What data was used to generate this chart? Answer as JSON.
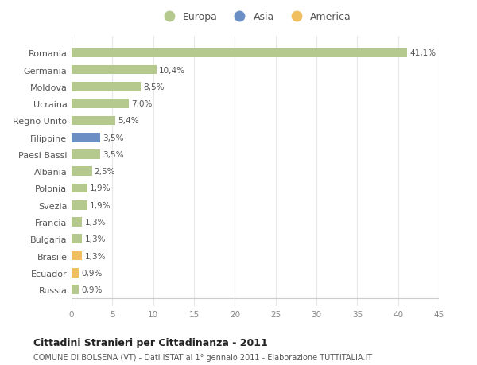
{
  "categories": [
    "Romania",
    "Germania",
    "Moldova",
    "Ucraina",
    "Regno Unito",
    "Filippine",
    "Paesi Bassi",
    "Albania",
    "Polonia",
    "Svezia",
    "Francia",
    "Bulgaria",
    "Brasile",
    "Ecuador",
    "Russia"
  ],
  "values": [
    41.1,
    10.4,
    8.5,
    7.0,
    5.4,
    3.5,
    3.5,
    2.5,
    1.9,
    1.9,
    1.3,
    1.3,
    1.3,
    0.9,
    0.9
  ],
  "labels": [
    "41,1%",
    "10,4%",
    "8,5%",
    "7,0%",
    "5,4%",
    "3,5%",
    "3,5%",
    "2,5%",
    "1,9%",
    "1,9%",
    "1,3%",
    "1,3%",
    "1,3%",
    "0,9%",
    "0,9%"
  ],
  "colors": [
    "#b5c98e",
    "#b5c98e",
    "#b5c98e",
    "#b5c98e",
    "#b5c98e",
    "#6b8fc4",
    "#b5c98e",
    "#b5c98e",
    "#b5c98e",
    "#b5c98e",
    "#b5c98e",
    "#b5c98e",
    "#f0c060",
    "#f0c060",
    "#b5c98e"
  ],
  "legend_labels": [
    "Europa",
    "Asia",
    "America"
  ],
  "legend_colors": [
    "#b5c98e",
    "#6b8fc4",
    "#f0c060"
  ],
  "xlim": [
    0,
    45
  ],
  "xticks": [
    0,
    5,
    10,
    15,
    20,
    25,
    30,
    35,
    40,
    45
  ],
  "title": "Cittadini Stranieri per Cittadinanza - 2011",
  "subtitle": "COMUNE DI BOLSENA (VT) - Dati ISTAT al 1° gennaio 2011 - Elaborazione TUTTITALIA.IT",
  "bg_color": "#ffffff",
  "plot_bg_color": "#ffffff",
  "grid_color": "#e8e8e8"
}
